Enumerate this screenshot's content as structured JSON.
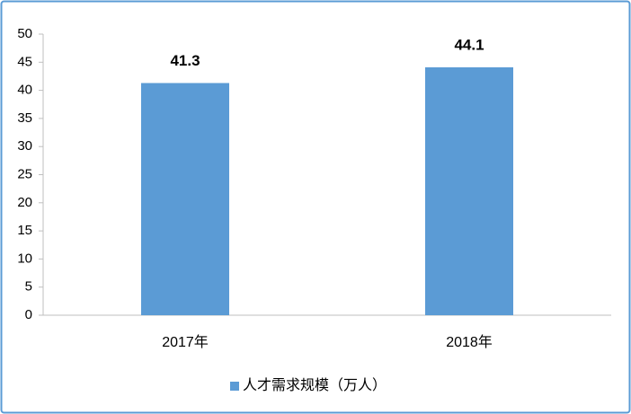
{
  "chart_data": {
    "type": "bar",
    "categories": [
      "2017年",
      "2018年"
    ],
    "series": [
      {
        "name": "人才需求规模（万人）",
        "color": "#5b9bd5",
        "values": [
          41.3,
          44.1
        ]
      }
    ],
    "ylim": [
      0,
      50
    ],
    "yticks": [
      0,
      5,
      10,
      15,
      20,
      25,
      30,
      35,
      40,
      45,
      50
    ],
    "grid": false,
    "legend": "bottom",
    "data_labels": true
  }
}
